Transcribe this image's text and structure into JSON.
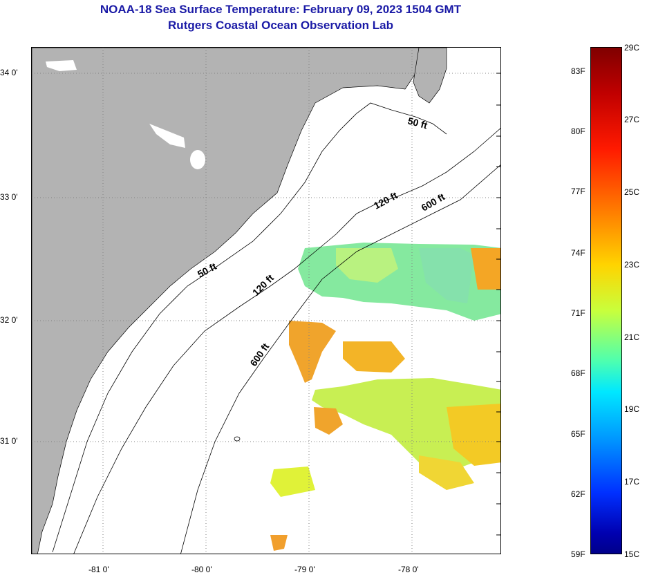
{
  "header": {
    "title": "NOAA-18 Sea Surface Temperature:  February 09, 2023 1504 GMT",
    "subtitle": "Rutgers Coastal Ocean Observation Lab"
  },
  "map": {
    "lat_labels": [
      "34 0'",
      "33 0'",
      "32 0'",
      "31 0'"
    ],
    "lon_labels": [
      "-81 0'",
      "-80 0'",
      "-79 0'",
      "-78 0'"
    ],
    "contour_labels": [
      "50 ft",
      "50 ft",
      "120 ft",
      "120 ft",
      "600 ft",
      "600 ft"
    ],
    "colors": {
      "land": "#b3b3b3",
      "ocean": "#ffffff",
      "contour": "#000000",
      "gridline": "#808080"
    }
  },
  "colorbar": {
    "fahrenheit_labels": [
      "83F",
      "80F",
      "77F",
      "74F",
      "71F",
      "68F",
      "65F",
      "62F",
      "59F"
    ],
    "celsius_labels": [
      "29C",
      "27C",
      "25C",
      "23C",
      "21C",
      "19C",
      "17C",
      "15C"
    ]
  }
}
